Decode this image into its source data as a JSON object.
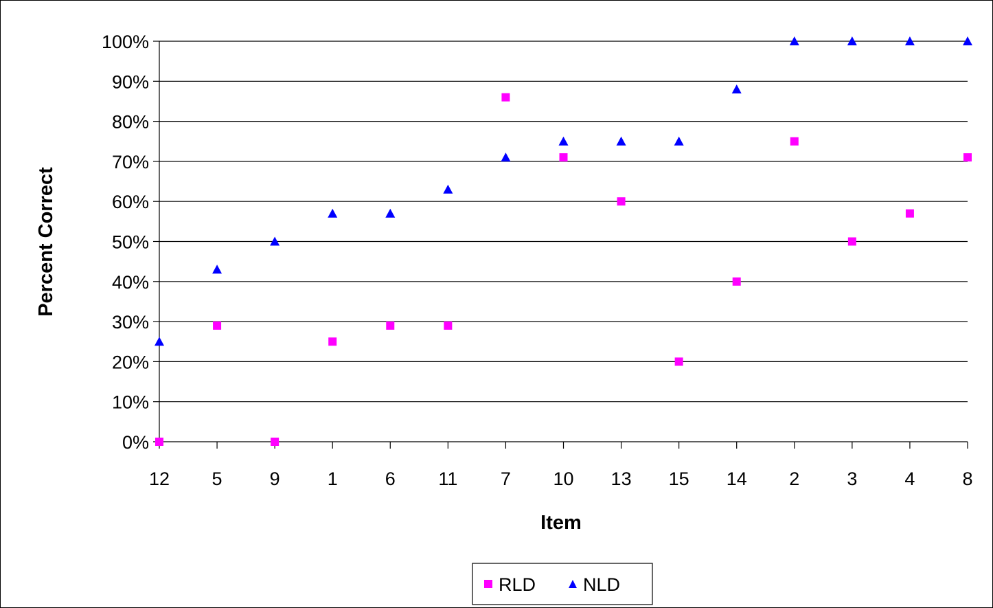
{
  "chart_data": {
    "type": "scatter",
    "xlabel": "Item",
    "ylabel": "Percent Correct",
    "categories": [
      "12",
      "5",
      "9",
      "1",
      "6",
      "11",
      "7",
      "10",
      "13",
      "15",
      "14",
      "2",
      "3",
      "4",
      "8"
    ],
    "ylim": [
      0,
      100
    ],
    "yticks": [
      "0%",
      "10%",
      "20%",
      "30%",
      "40%",
      "50%",
      "60%",
      "70%",
      "80%",
      "90%",
      "100%"
    ],
    "grid": "horizontal",
    "legend_position": "bottom",
    "series": [
      {
        "name": "RLD",
        "marker": "square",
        "color": "#FF00FF",
        "values": [
          0,
          29,
          0,
          25,
          29,
          29,
          86,
          71,
          60,
          20,
          40,
          75,
          50,
          57,
          71
        ]
      },
      {
        "name": "NLD",
        "marker": "triangle",
        "color": "#0000FF",
        "values": [
          25,
          43,
          50,
          57,
          57,
          63,
          71,
          75,
          75,
          75,
          88,
          100,
          100,
          100,
          100
        ]
      }
    ]
  }
}
